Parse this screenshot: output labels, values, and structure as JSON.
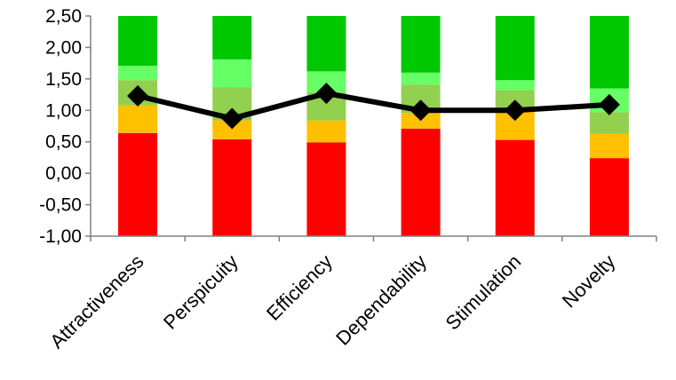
{
  "chart_data": {
    "type": "bar",
    "subtype": "stacked-bar-with-line-overlay",
    "title": "",
    "xlabel": "",
    "ylabel": "",
    "ylim": [
      -1.0,
      2.5
    ],
    "yticks": [
      "-1,00",
      "-0,50",
      "0,00",
      "0,50",
      "1,00",
      "1,50",
      "2,00",
      "2,50"
    ],
    "ytick_values": [
      -1.0,
      -0.5,
      0.0,
      0.5,
      1.0,
      1.5,
      2.0,
      2.5
    ],
    "grid": false,
    "legend": "none",
    "categories": [
      "Attractiveness",
      "Perspicuity",
      "Efficiency",
      "Dependability",
      "Stimulation",
      "Novelty"
    ],
    "bands": {
      "colors": [
        "#ff0000",
        "#ffc000",
        "#92d050",
        "#66ff66",
        "#00c800"
      ],
      "boundaries": [
        [
          0.64,
          1.08,
          1.48,
          1.71,
          2.5
        ],
        [
          0.54,
          0.84,
          1.37,
          1.81,
          2.5
        ],
        [
          0.49,
          0.84,
          1.29,
          1.62,
          2.5
        ],
        [
          0.71,
          0.96,
          1.41,
          1.6,
          2.5
        ],
        [
          0.53,
          0.99,
          1.32,
          1.48,
          2.5
        ],
        [
          0.24,
          0.63,
          0.97,
          1.35,
          2.5
        ]
      ]
    },
    "series": [
      {
        "values": [
          1.23,
          0.87,
          1.27,
          1.0,
          1.0,
          1.09
        ],
        "color": "#000000"
      }
    ]
  }
}
